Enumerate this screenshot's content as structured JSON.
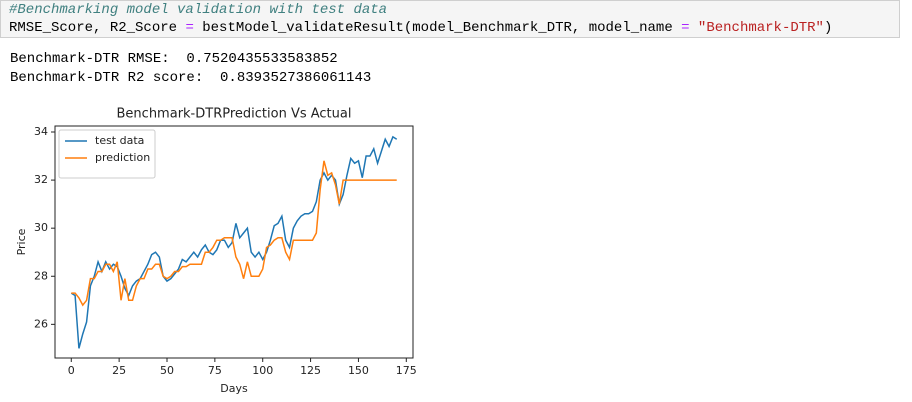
{
  "code": {
    "comment": "#Benchmarking model validation with test data",
    "tokens": [
      "RMSE_Score, R2_Score ",
      "=",
      " bestModel_validateResult(model_Benchmark_DTR, model_name ",
      "=",
      " \"Benchmark-DTR\"",
      ")"
    ]
  },
  "output": [
    "Benchmark-DTR RMSE:  0.7520435533583852",
    "Benchmark-DTR R2 score:  0.8393527386061143"
  ],
  "chart_data": {
    "type": "line",
    "title": "Benchmark-DTRPrediction Vs Actual",
    "x_label": "Days",
    "y_label": "Price",
    "legend": "upper left",
    "x": [
      0,
      2,
      4,
      6,
      8,
      10,
      12,
      14,
      16,
      18,
      20,
      22,
      24,
      26,
      28,
      30,
      32,
      34,
      36,
      38,
      40,
      42,
      44,
      46,
      48,
      50,
      52,
      54,
      56,
      58,
      60,
      62,
      64,
      66,
      68,
      70,
      72,
      74,
      76,
      78,
      80,
      82,
      84,
      86,
      88,
      90,
      92,
      94,
      96,
      98,
      100,
      102,
      104,
      106,
      108,
      110,
      112,
      114,
      116,
      118,
      120,
      122,
      124,
      126,
      128,
      130,
      132,
      134,
      136,
      138,
      140,
      142,
      144,
      146,
      148,
      150,
      152,
      154,
      156,
      158,
      160,
      162,
      164,
      166,
      168,
      170
    ],
    "series": [
      {
        "name": "test data",
        "color": "#1f77b4",
        "values": [
          27.3,
          27.2,
          25.0,
          25.6,
          26.1,
          27.6,
          28.0,
          28.6,
          28.2,
          28.6,
          28.3,
          28.5,
          28.4,
          28.0,
          27.5,
          27.2,
          27.6,
          27.8,
          27.9,
          28.2,
          28.5,
          28.9,
          29.0,
          28.8,
          28.0,
          27.8,
          27.9,
          28.1,
          28.3,
          28.7,
          28.6,
          28.8,
          29.0,
          28.8,
          29.1,
          29.3,
          29.0,
          28.9,
          29.1,
          29.5,
          29.5,
          29.2,
          29.4,
          30.2,
          29.6,
          29.8,
          30.0,
          29.0,
          28.8,
          29.0,
          28.7,
          29.0,
          29.5,
          30.1,
          30.2,
          30.5,
          29.5,
          29.2,
          30.0,
          30.3,
          30.5,
          30.6,
          30.6,
          30.7,
          31.1,
          32.0,
          32.3,
          32.0,
          32.2,
          32.0,
          31.0,
          31.4,
          32.2,
          32.9,
          32.7,
          32.8,
          32.1,
          33.0,
          33.0,
          33.3,
          32.7,
          33.2,
          33.7,
          33.4,
          33.8,
          33.7
        ]
      },
      {
        "name": "prediction",
        "color": "#ff7f0e",
        "values": [
          27.3,
          27.3,
          27.1,
          26.8,
          27.0,
          27.9,
          27.9,
          28.2,
          28.2,
          28.5,
          28.5,
          28.2,
          28.6,
          27.0,
          27.9,
          27.0,
          27.0,
          27.6,
          27.9,
          27.9,
          28.3,
          28.3,
          28.5,
          28.5,
          28.0,
          27.9,
          28.0,
          28.2,
          28.2,
          28.4,
          28.4,
          28.5,
          28.5,
          28.5,
          28.5,
          29.0,
          29.0,
          29.2,
          29.5,
          29.5,
          29.6,
          29.6,
          29.6,
          28.8,
          28.5,
          27.9,
          28.6,
          28.0,
          28.0,
          28.0,
          28.3,
          29.2,
          29.3,
          29.5,
          29.6,
          29.6,
          29.0,
          28.7,
          29.5,
          29.5,
          29.5,
          29.5,
          29.5,
          29.5,
          29.8,
          31.6,
          32.8,
          32.2,
          32.3,
          31.8,
          31.0,
          32.0,
          32.0,
          32.0,
          32.0,
          32.0,
          32.0,
          32.0,
          32.0,
          32.0,
          32.0,
          32.0,
          32.0,
          32.0,
          32.0,
          32.0
        ]
      }
    ],
    "xlim": [
      -8.5,
      178.5
    ],
    "xticks": [
      0,
      25,
      50,
      75,
      100,
      125,
      150,
      175
    ],
    "ylim": [
      24.6,
      34.25
    ],
    "yticks": [
      26,
      28,
      30,
      32,
      34
    ]
  }
}
